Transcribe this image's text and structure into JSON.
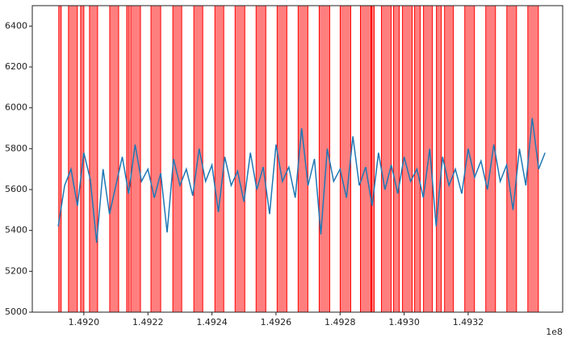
{
  "chart_data": {
    "type": "line",
    "x_offset_label": "1e8",
    "xlim": [
      149183900,
      149349500
    ],
    "ylim": [
      5000,
      6500
    ],
    "xticks": [
      {
        "value": 149200000,
        "label": "1.4920"
      },
      {
        "value": 149220000,
        "label": "1.4922"
      },
      {
        "value": 149240000,
        "label": "1.4924"
      },
      {
        "value": 149260000,
        "label": "1.4926"
      },
      {
        "value": 149280000,
        "label": "1.4928"
      },
      {
        "value": 149300000,
        "label": "1.4930"
      },
      {
        "value": 149320000,
        "label": "1.4932"
      }
    ],
    "yticks": [
      5000,
      5200,
      5400,
      5600,
      5800,
      6000,
      6200,
      6400
    ],
    "span_color": "#ff0000",
    "spans": [
      [
        149192170,
        149192930
      ],
      [
        149195200,
        149197980
      ],
      [
        149198990,
        149200000
      ],
      [
        149201770,
        149204290
      ],
      [
        149208080,
        149210860
      ],
      [
        149213380,
        149214140
      ],
      [
        149214650,
        149217680
      ],
      [
        149220960,
        149223990
      ],
      [
        149227780,
        149230550
      ],
      [
        149234340,
        149237120
      ],
      [
        149240910,
        149243680
      ],
      [
        149247220,
        149250250
      ],
      [
        149253780,
        149256810
      ],
      [
        149260350,
        149263380
      ],
      [
        149266910,
        149269940
      ],
      [
        149273480,
        149276760
      ],
      [
        149280040,
        149283330
      ],
      [
        149286360,
        149289640
      ],
      [
        149289890,
        149290650
      ],
      [
        149292920,
        149295950
      ],
      [
        149296710,
        149298480
      ],
      [
        149299490,
        149302520
      ],
      [
        149303270,
        149305040
      ],
      [
        149306050,
        149308830
      ],
      [
        149310090,
        149311610
      ],
      [
        149312620,
        149315390
      ],
      [
        149318930,
        149321960
      ],
      [
        149325490,
        149328520
      ],
      [
        149332060,
        149335090
      ],
      [
        149338620,
        149341910
      ]
    ],
    "x": [
      149192000,
      149194000,
      149196000,
      149198000,
      149200000,
      149202000,
      149204000,
      149206000,
      149208000,
      149210000,
      149212000,
      149214000,
      149216000,
      149218000,
      149220000,
      149222000,
      149224000,
      149226000,
      149228000,
      149230000,
      149232000,
      149234000,
      149236000,
      149238000,
      149240000,
      149242000,
      149244000,
      149246000,
      149248000,
      149250000,
      149252000,
      149254000,
      149256000,
      149258000,
      149260000,
      149262000,
      149264000,
      149266000,
      149268000,
      149270000,
      149272000,
      149274000,
      149276000,
      149278000,
      149280000,
      149282000,
      149284000,
      149286000,
      149288000,
      149290000,
      149292000,
      149294000,
      149296000,
      149298000,
      149300000,
      149302000,
      149304000,
      149306000,
      149308000,
      149310000,
      149312000,
      149314000,
      149316000,
      149318000,
      149320000,
      149322000,
      149324000,
      149326000,
      149328000,
      149330000,
      149332000,
      149334000,
      149336000,
      149338000,
      149340000,
      149342000,
      149344000
    ],
    "series": [
      {
        "color": "#1f77b4",
        "values": [
          5420,
          5620,
          5700,
          5520,
          5780,
          5650,
          5340,
          5700,
          5480,
          5620,
          5760,
          5580,
          5820,
          5640,
          5700,
          5560,
          5680,
          5390,
          5750,
          5620,
          5700,
          5570,
          5800,
          5640,
          5720,
          5490,
          5760,
          5620,
          5690,
          5540,
          5780,
          5600,
          5710,
          5480,
          5820,
          5640,
          5710,
          5560,
          5900,
          5620,
          5750,
          5380,
          5800,
          5640,
          5700,
          5560,
          5860,
          5620,
          5710,
          5520,
          5780,
          5600,
          5720,
          5580,
          5760,
          5640,
          5700,
          5560,
          5800,
          5420,
          5760,
          5620,
          5700,
          5580,
          5800,
          5660,
          5740,
          5600,
          5820,
          5640,
          5720,
          5500,
          5800,
          5620,
          5950,
          5700,
          5780
        ]
      }
    ]
  }
}
